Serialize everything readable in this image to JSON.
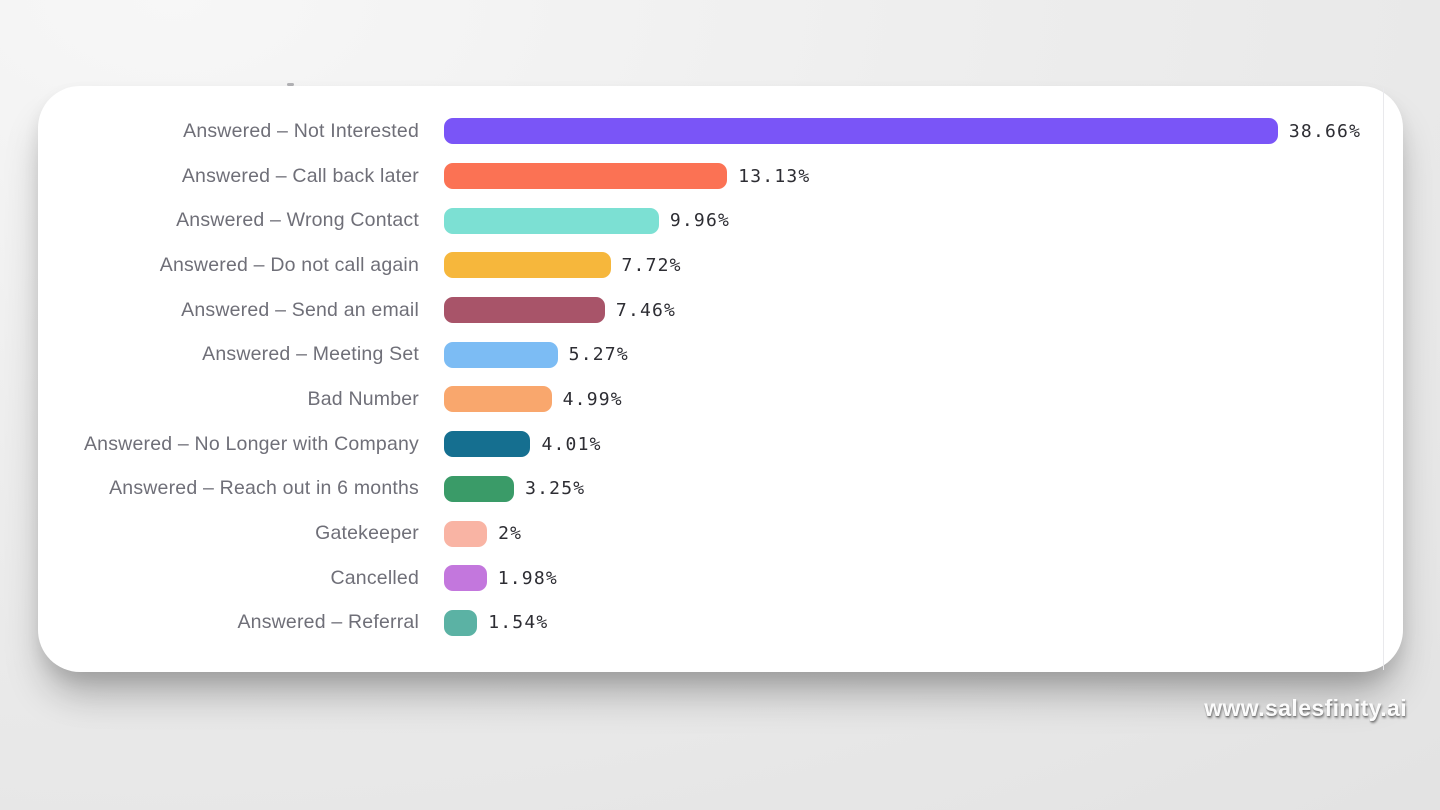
{
  "watermark": "www.salesfinity.ai",
  "chart_data": {
    "type": "bar",
    "orientation": "horizontal",
    "title": "",
    "xlabel": "",
    "ylabel": "",
    "unit": "%",
    "xlim": [
      0,
      40
    ],
    "grid": false,
    "legend": false,
    "categories": [
      "Answered – Not Interested",
      "Answered – Call back later",
      "Answered – Wrong Contact",
      "Answered – Do not call again",
      "Answered – Send an email",
      "Answered – Meeting Set",
      "Bad Number",
      "Answered – No Longer with Company",
      "Answered – Reach out in 6 months",
      "Gatekeeper",
      "Cancelled",
      "Answered – Referral"
    ],
    "values": [
      38.66,
      13.13,
      9.96,
      7.72,
      7.46,
      5.27,
      4.99,
      4.01,
      3.25,
      2,
      1.98,
      1.54
    ],
    "value_labels": [
      "38.66%",
      "13.13%",
      "9.96%",
      "7.72%",
      "7.46%",
      "5.27%",
      "4.99%",
      "4.01%",
      "3.25%",
      "2%",
      "1.98%",
      "1.54%"
    ],
    "bar_colors": [
      "#7A55F7",
      "#FB7254",
      "#7CE0D3",
      "#F6B73C",
      "#A85469",
      "#7CBCF4",
      "#F9A76D",
      "#156F90",
      "#3A9B68",
      "#F9B4A4",
      "#C377DD",
      "#5BB2A4"
    ],
    "label_text_color": "#6F6F78",
    "value_text_color": "#2D2D33",
    "card_background": "#FFFFFF",
    "page_background": "#ECECEC"
  }
}
